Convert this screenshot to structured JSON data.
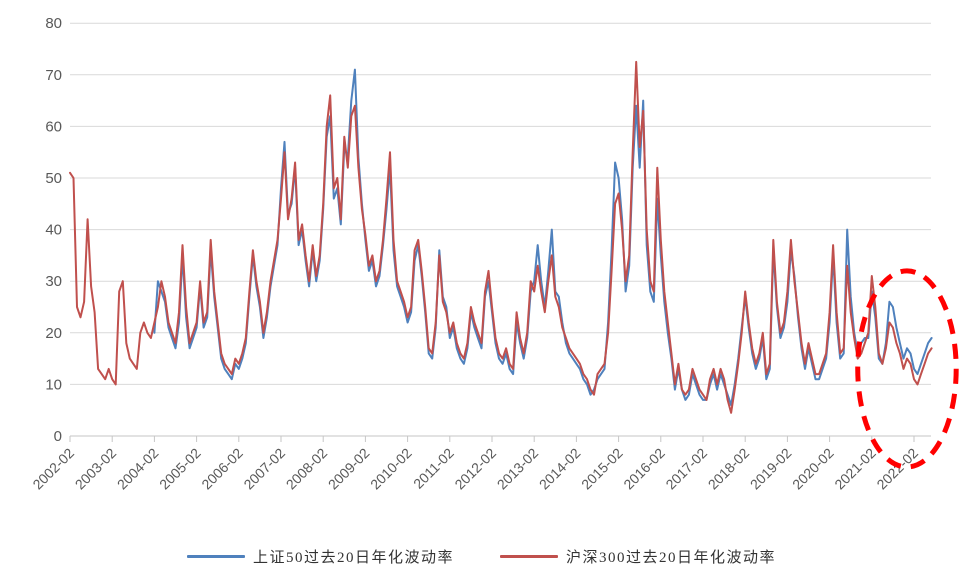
{
  "page": {
    "background": "#ffffff"
  },
  "styles": {
    "gridline_color": "#d9d9d9",
    "axis_color": "#c6c6c6",
    "tick_label_color": "#595959",
    "annotation_color": "#ff0000"
  },
  "chart_data": {
    "type": "line",
    "title": "",
    "xlabel": "",
    "ylabel": "",
    "grid": "horizontal",
    "legend_position": "bottom",
    "x_axis": {
      "start": "2002-02",
      "step": "1 month",
      "tick_labels": [
        "2002-02",
        "2003-02",
        "2004-02",
        "2005-02",
        "2006-02",
        "2007-02",
        "2008-02",
        "2009-02",
        "2010-02",
        "2011-02",
        "2012-02",
        "2013-02",
        "2014-02",
        "2015-02",
        "2016-02",
        "2017-02",
        "2018-02",
        "2019-02",
        "2020-02",
        "2021-02",
        "2022-02"
      ]
    },
    "y_axis": {
      "ticks": [
        0,
        10,
        20,
        30,
        40,
        50,
        60,
        70,
        80
      ],
      "range": [
        0,
        80
      ]
    },
    "series": [
      {
        "name": "上证50过去20日年化波动率",
        "color": "#4f81bd",
        "start": "2004-02",
        "values": [
          20,
          30,
          28,
          26,
          21,
          19,
          17,
          22,
          35,
          23,
          17,
          19,
          21,
          29,
          21,
          23,
          36,
          27,
          21,
          15,
          13,
          12,
          11,
          14,
          13,
          15,
          18,
          27,
          35,
          29,
          25,
          19,
          23,
          29,
          33,
          37,
          48,
          57,
          43,
          45,
          52,
          37,
          40,
          34,
          29,
          36,
          30,
          34,
          44,
          58,
          62,
          46,
          48,
          41,
          56,
          54,
          65,
          71,
          54,
          45,
          38,
          32,
          34,
          29,
          31,
          37,
          44,
          52,
          36,
          29,
          27,
          25,
          22,
          24,
          34,
          37,
          31,
          24,
          16,
          15,
          21,
          36,
          27,
          25,
          19,
          21,
          17,
          15,
          14,
          17,
          24,
          21,
          19,
          17,
          27,
          30,
          24,
          18,
          15,
          14,
          16,
          13,
          12,
          22,
          18,
          15,
          19,
          28,
          30,
          37,
          30,
          25,
          32,
          40,
          28,
          27,
          22,
          18,
          16,
          15,
          14,
          13,
          11,
          10,
          8,
          9,
          11,
          12,
          13,
          22,
          36,
          53,
          50,
          42,
          28,
          33,
          52,
          64,
          52,
          65,
          37,
          28,
          26,
          46,
          35,
          26,
          20,
          15,
          9,
          13,
          9,
          7,
          8,
          12,
          10,
          8,
          7,
          7,
          10,
          12,
          9,
          12,
          10,
          8,
          6,
          10,
          15,
          21,
          27,
          21,
          16,
          13,
          15,
          19,
          11,
          13,
          36,
          25,
          19,
          21,
          26,
          36,
          31,
          23,
          17,
          13,
          17,
          14,
          11,
          11,
          13,
          15,
          22,
          35,
          22,
          15,
          16,
          40,
          27,
          20,
          16,
          18,
          19,
          19,
          28,
          23,
          15,
          14,
          18,
          26,
          25,
          21,
          18,
          15,
          17,
          16,
          13,
          12,
          14,
          16,
          18,
          19
        ]
      },
      {
        "name": "沪深300过去20日年化波动率",
        "color": "#c0504d",
        "start": "2002-02",
        "values": [
          51,
          50,
          25,
          23,
          26,
          42,
          29,
          24,
          13,
          12,
          11,
          13,
          11,
          10,
          28,
          30,
          18,
          15,
          14,
          13,
          20,
          22,
          20,
          19,
          22,
          25,
          30,
          27,
          22,
          20,
          18,
          24,
          37,
          25,
          18,
          20,
          22,
          30,
          22,
          24,
          38,
          28,
          22,
          16,
          14,
          13,
          12,
          15,
          14,
          16,
          19,
          28,
          36,
          30,
          26,
          20,
          24,
          30,
          34,
          38,
          46,
          55,
          42,
          46,
          53,
          38,
          41,
          35,
          30,
          37,
          31,
          35,
          45,
          60,
          66,
          48,
          50,
          42,
          58,
          52,
          62,
          64,
          52,
          44,
          39,
          33,
          35,
          30,
          32,
          38,
          46,
          55,
          38,
          30,
          28,
          26,
          23,
          25,
          36,
          38,
          32,
          25,
          17,
          16,
          22,
          35,
          26,
          24,
          20,
          22,
          18,
          16,
          15,
          18,
          25,
          22,
          20,
          18,
          28,
          32,
          25,
          19,
          16,
          15,
          17,
          14,
          13,
          24,
          19,
          16,
          20,
          30,
          28,
          33,
          28,
          24,
          30,
          35,
          27,
          25,
          21,
          19,
          17,
          16,
          15,
          14,
          12,
          11,
          9,
          8,
          12,
          13,
          14,
          20,
          32,
          45,
          47,
          40,
          30,
          35,
          55,
          72.5,
          56,
          63,
          40,
          30,
          28,
          52,
          38,
          28,
          22,
          16,
          10,
          14,
          9,
          8,
          9,
          13,
          11,
          9,
          8,
          7,
          11,
          13,
          10,
          13,
          11,
          7,
          4.5,
          9,
          14,
          20,
          28,
          22,
          17,
          14,
          16,
          20,
          12,
          14,
          38,
          26,
          20,
          22,
          28,
          38,
          30,
          24,
          18,
          14,
          18,
          15,
          12,
          12,
          14,
          16,
          24,
          37,
          24,
          16,
          17,
          33,
          24,
          19,
          15,
          16,
          18,
          20,
          31,
          25,
          16,
          14,
          17,
          22,
          21,
          18,
          16,
          13,
          15,
          14,
          11,
          10,
          12,
          14,
          16,
          17
        ]
      }
    ],
    "annotation": {
      "shape": "dashed-ellipse",
      "color": "#ff0000",
      "center_x": "2021-12",
      "span_months": 28,
      "center_y": 13,
      "span_y": 38
    }
  },
  "legend": {
    "items": [
      {
        "label": "上证50过去20日年化波动率",
        "color": "#4f81bd"
      },
      {
        "label": "沪深300过去20日年化波动率",
        "color": "#c0504d"
      }
    ]
  }
}
